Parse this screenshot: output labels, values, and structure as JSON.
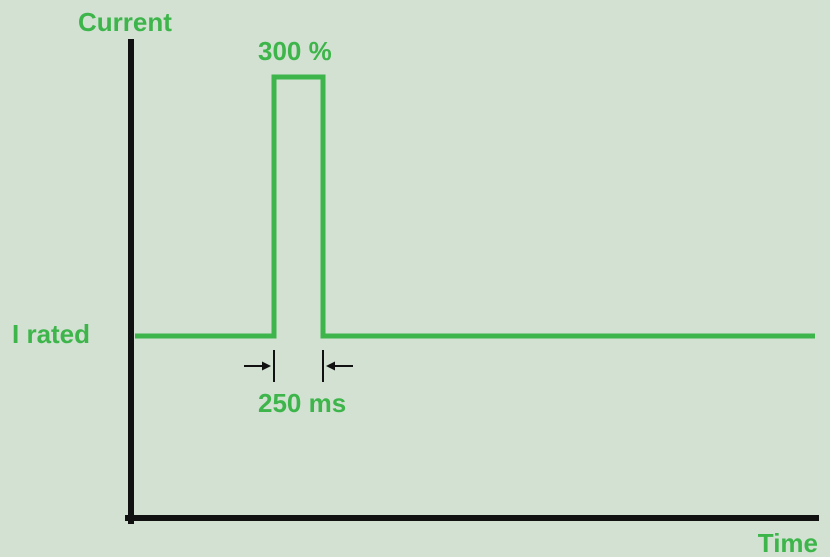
{
  "labels": {
    "y_axis": "Current",
    "x_axis": "Time",
    "baseline": "I rated",
    "peak": "300 %",
    "duration": "250 ms"
  },
  "colors": {
    "background": "#d2e1d2",
    "accent": "#3db54a",
    "axis": "#111111"
  }
}
